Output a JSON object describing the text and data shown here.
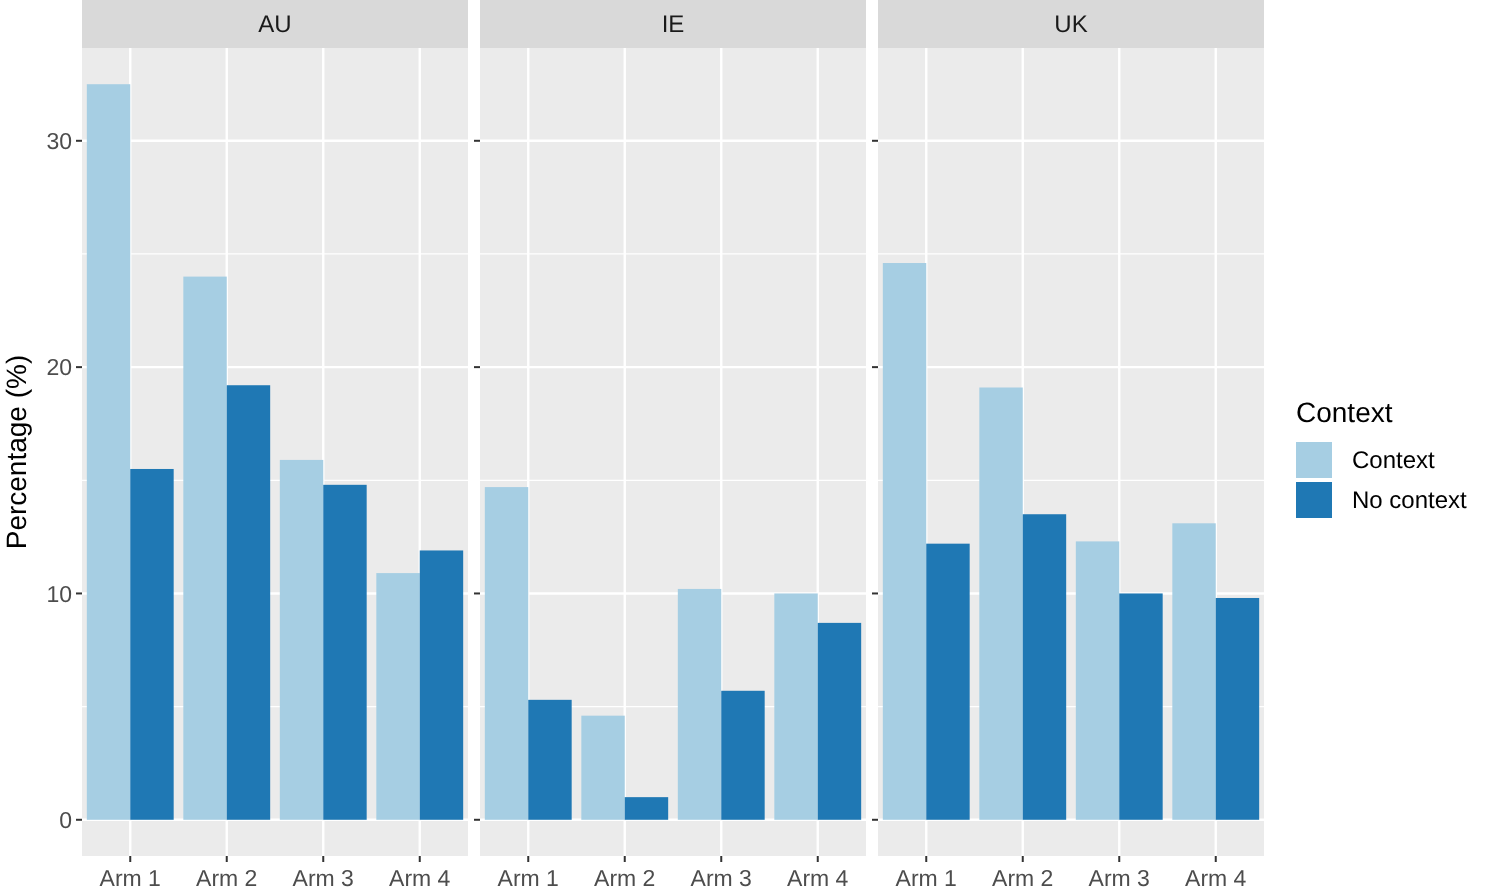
{
  "chart_data": [
    {
      "type": "bar",
      "title": "AU",
      "ylabel": "Percentage (%)",
      "legend_title": "Context",
      "categories": [
        "Arm 1",
        "Arm 2",
        "Arm 3",
        "Arm 4"
      ],
      "series": [
        {
          "name": "Context",
          "color": "#a6cee3",
          "values": [
            32.5,
            24.0,
            15.9,
            10.9
          ]
        },
        {
          "name": "No context",
          "color": "#1f78b4",
          "values": [
            15.5,
            19.2,
            14.8,
            11.9
          ]
        }
      ],
      "ylim": [
        -1.6,
        34.1
      ],
      "yticks": [
        0,
        10,
        20,
        30
      ],
      "grid": true,
      "legend": "right"
    },
    {
      "type": "bar",
      "title": "IE",
      "categories": [
        "Arm 1",
        "Arm 2",
        "Arm 3",
        "Arm 4"
      ],
      "series": [
        {
          "color": "#a6cee3",
          "values": [
            14.7,
            4.6,
            10.2,
            10.0
          ]
        },
        {
          "color": "#1f78b4",
          "values": [
            5.3,
            1.0,
            5.7,
            8.7
          ]
        }
      ],
      "ylim": [
        -1.6,
        34.1
      ],
      "yticks": [
        0,
        10,
        20,
        30
      ],
      "grid": true,
      "tick_labels": "x"
    },
    {
      "type": "bar",
      "title": "UK",
      "categories": [
        "Arm 1",
        "Arm 2",
        "Arm 3",
        "Arm 4"
      ],
      "series": [
        {
          "color": "#a6cee3",
          "values": [
            24.6,
            19.1,
            12.3,
            13.1
          ]
        },
        {
          "color": "#1f78b4",
          "values": [
            12.2,
            13.5,
            10.0,
            9.8
          ]
        }
      ],
      "ylim": [
        -1.6,
        34.1
      ],
      "yticks": [
        0,
        10,
        20,
        30
      ],
      "grid": true,
      "tick_labels": "x"
    }
  ]
}
